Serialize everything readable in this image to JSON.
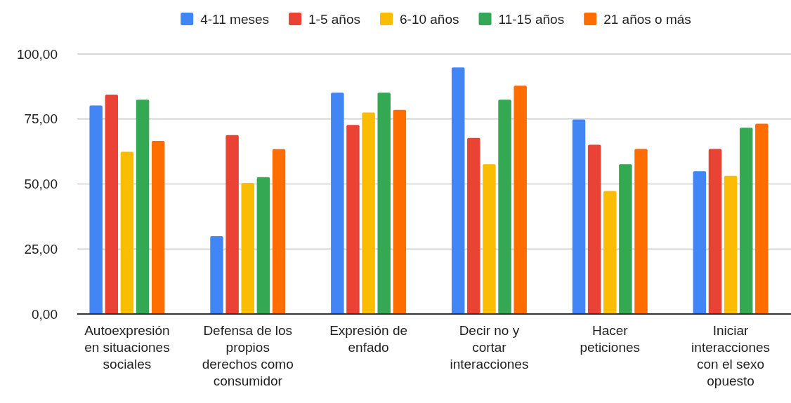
{
  "chart_data": {
    "type": "bar",
    "categories": [
      "Autoexpresión en situaciones sociales",
      "Defensa de los propios derechos como consumidor",
      "Expresión de enfado",
      "Decir no y cortar interacciones",
      "Hacer peticiones",
      "Iniciar interacciones con el sexo opuesto"
    ],
    "series": [
      {
        "name": "4-11 meses",
        "color": "#4285f4",
        "values": [
          80.2,
          29.9,
          85.1,
          94.8,
          74.8,
          54.9
        ]
      },
      {
        "name": "1-5 años",
        "color": "#ea4335",
        "values": [
          84.4,
          68.8,
          72.7,
          67.7,
          65.1,
          63.5
        ]
      },
      {
        "name": "6-10 años",
        "color": "#fbbc04",
        "values": [
          62.4,
          50.4,
          77.5,
          57.6,
          47.3,
          53.2
        ]
      },
      {
        "name": "11-15 años",
        "color": "#34a853",
        "values": [
          82.4,
          52.6,
          85.1,
          82.4,
          57.6,
          71.6
        ]
      },
      {
        "name": "21 años o más",
        "color": "#ff6d01",
        "values": [
          66.6,
          63.4,
          78.5,
          87.8,
          63.5,
          73.2
        ]
      }
    ],
    "ylim": [
      0,
      100
    ],
    "yticks": [
      {
        "value": 0,
        "label": "0,00"
      },
      {
        "value": 25,
        "label": "25,00"
      },
      {
        "value": 50,
        "label": "50,00"
      },
      {
        "value": 75,
        "label": "75,00"
      },
      {
        "value": 100,
        "label": "100,00"
      }
    ],
    "grid": "y",
    "legend": "top"
  }
}
